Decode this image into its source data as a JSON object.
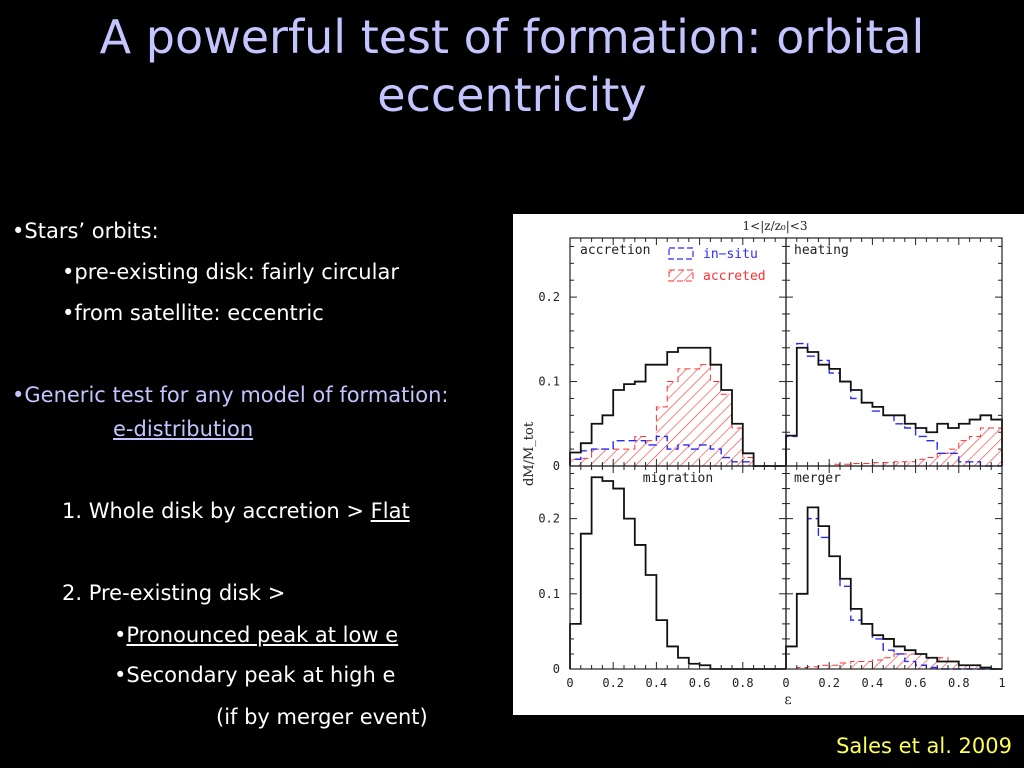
{
  "slide": {
    "title": "A powerful test of formation: orbital eccentricity",
    "credit": "Sales et al. 2009"
  },
  "bullets": {
    "b1": "•Stars’ orbits:",
    "b1a": "•pre-existing disk: fairly circular",
    "b1b": "•from satellite: eccentric",
    "b2": "•Generic test for any model of formation:",
    "b2_link": "e-distribution",
    "n1_text": "1. Whole disk by accretion > ",
    "n1_link": "Flat",
    "n2_text": "2. Pre-existing disk >",
    "n2a_bullet": "•",
    "n2a_link": "Pronounced peak at low e",
    "n2b": "•Secondary peak at high e",
    "n2c": "(if by merger event)"
  },
  "colors": {
    "title": "#c4c4ff",
    "credit": "#ffff55",
    "insitu": "#2a2aff",
    "accreted": "#ff3030"
  },
  "chart_data": {
    "type": "histogram",
    "figure_title": "1<|z/z₀|<3",
    "xlabel": "ε",
    "ylabel": "dM/M_tot",
    "xlim": [
      0,
      1
    ],
    "ylim": [
      0,
      0.27
    ],
    "xticks": [
      0,
      0.2,
      0.4,
      0.6,
      0.8,
      1
    ],
    "xtick_labels": [
      "0",
      "0.2",
      "0.4",
      "0.6",
      "0.8",
      "1"
    ],
    "yticks": [
      0,
      0.1,
      0.2
    ],
    "ytick_labels": [
      "0",
      "0.1",
      "0.2"
    ],
    "bin_edges": [
      0,
      0.05,
      0.1,
      0.15,
      0.2,
      0.25,
      0.3,
      0.35,
      0.4,
      0.45,
      0.5,
      0.55,
      0.6,
      0.65,
      0.7,
      0.75,
      0.8,
      0.85,
      0.9,
      0.95,
      1.0
    ],
    "legend": {
      "insitu": "in−situ",
      "accreted": "accreted"
    },
    "panels": [
      {
        "name": "accretion",
        "total": [
          0.016,
          0.027,
          0.05,
          0.06,
          0.09,
          0.097,
          0.1,
          0.12,
          0.12,
          0.135,
          0.14,
          0.14,
          0.14,
          0.12,
          0.09,
          0.05,
          0.015,
          0,
          0,
          0
        ],
        "insitu": [
          0.008,
          0.018,
          0.02,
          0.02,
          0.03,
          0.03,
          0.03,
          0.025,
          0.035,
          0.02,
          0.025,
          0.02,
          0.025,
          0.02,
          0.01,
          0.005,
          0.005,
          0,
          0,
          0
        ],
        "accreted": [
          0.008,
          0.009,
          0.02,
          0.02,
          0.02,
          0.02,
          0.035,
          0.03,
          0.07,
          0.1,
          0.115,
          0.115,
          0.12,
          0.1,
          0.085,
          0.045,
          0.01,
          0,
          0,
          0
        ]
      },
      {
        "name": "heating",
        "total": [
          0.036,
          0.14,
          0.135,
          0.12,
          0.115,
          0.1,
          0.09,
          0.075,
          0.07,
          0.06,
          0.06,
          0.05,
          0.045,
          0.04,
          0.05,
          0.045,
          0.05,
          0.055,
          0.06,
          0.055
        ],
        "insitu": [
          0.035,
          0.145,
          0.13,
          0.125,
          0.11,
          0.1,
          0.08,
          0.075,
          0.065,
          0.06,
          0.05,
          0.045,
          0.035,
          0.03,
          0.015,
          0.015,
          0.005,
          0.005,
          0,
          0
        ],
        "accreted": [
          0,
          0,
          0,
          0,
          0.002,
          0.002,
          0.003,
          0.003,
          0.004,
          0.004,
          0.005,
          0.005,
          0.008,
          0.01,
          0.015,
          0.02,
          0.03,
          0.035,
          0.045,
          0.045
        ]
      },
      {
        "name": "migration",
        "total": [
          0.06,
          0.18,
          0.255,
          0.25,
          0.24,
          0.2,
          0.165,
          0.125,
          0.065,
          0.03,
          0.015,
          0.007,
          0.005,
          0,
          0,
          0,
          0,
          0,
          0,
          0
        ],
        "insitu": [],
        "accreted": []
      },
      {
        "name": "merger",
        "total": [
          0.03,
          0.1,
          0.215,
          0.19,
          0.15,
          0.12,
          0.08,
          0.06,
          0.045,
          0.04,
          0.03,
          0.025,
          0.02,
          0.015,
          0.01,
          0.01,
          0.005,
          0.005,
          0.002,
          0
        ],
        "insitu": [
          0.03,
          0.1,
          0.2,
          0.175,
          0.15,
          0.11,
          0.065,
          0.06,
          0.04,
          0.025,
          0.02,
          0.01,
          0.005,
          0.002,
          0,
          0,
          0,
          0,
          0,
          0
        ],
        "accreted": [
          0,
          0.002,
          0.003,
          0.005,
          0.005,
          0.008,
          0.01,
          0.01,
          0.012,
          0.015,
          0.02,
          0.02,
          0.02,
          0.015,
          0.015,
          0.01,
          0.005,
          0.005,
          0.002,
          0
        ]
      }
    ]
  }
}
